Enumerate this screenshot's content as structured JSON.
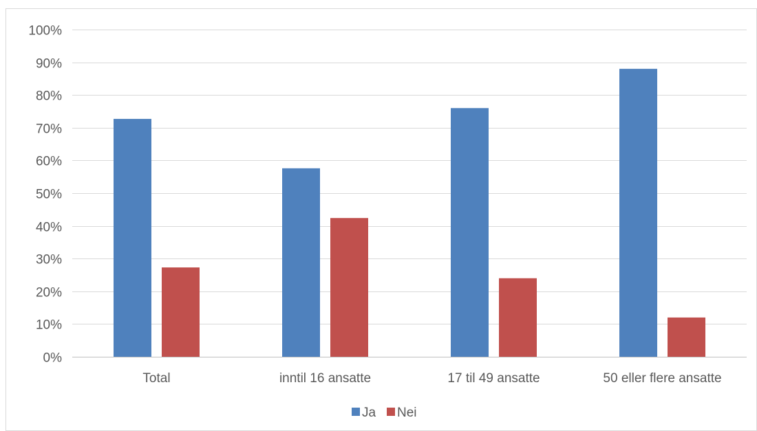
{
  "chart_data": {
    "type": "bar",
    "categories": [
      "Total",
      "inntil 16 ansatte",
      "17 til 49 ansatte",
      "50 eller flere ansatte"
    ],
    "series": [
      {
        "name": "Ja",
        "color": "#4F81BD",
        "values": [
          72.7,
          57.6,
          76.0,
          88.0
        ]
      },
      {
        "name": "Nei",
        "color": "#C0504D",
        "values": [
          27.3,
          42.4,
          24.0,
          12.0
        ]
      }
    ],
    "ylim": [
      0,
      100
    ],
    "yticks": [
      "0%",
      "10%",
      "20%",
      "30%",
      "40%",
      "50%",
      "60%",
      "70%",
      "80%",
      "90%",
      "100%"
    ],
    "title": "",
    "xlabel": "",
    "ylabel": "",
    "grid": true,
    "legend_position": "bottom"
  }
}
